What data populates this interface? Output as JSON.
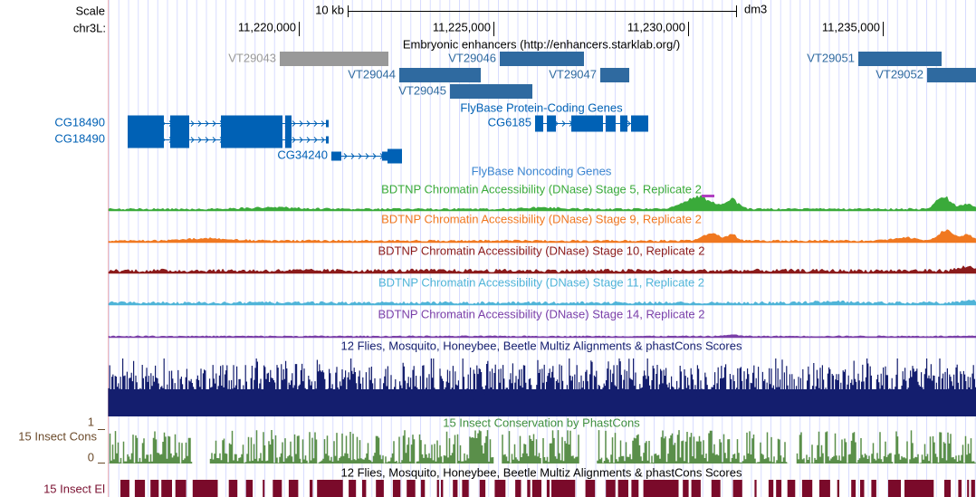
{
  "ruler": {
    "scale_label": "Scale",
    "scale_size": "10 kb",
    "assembly": "dm3",
    "chrom_label": "chr3L:",
    "positions": [
      "11,220,000",
      "11,225,000",
      "11,230,000",
      "11,235,000"
    ]
  },
  "enhancers": {
    "title": "Embryonic enhancers (http://enhancers.starklab.org/)",
    "items": [
      "VT29043",
      "VT29046",
      "VT29051",
      "VT29044",
      "VT29047",
      "VT29052",
      "VT29045"
    ]
  },
  "coding_genes": {
    "title": "FlyBase Protein-Coding Genes",
    "items": [
      "CG18490",
      "CG18490",
      "CG6185",
      "CG34240"
    ]
  },
  "noncoding_genes": {
    "title": "FlyBase Noncoding Genes"
  },
  "dnase_tracks": [
    "BDTNP Chromatin Accessibility (DNase) Stage 5, Replicate 2",
    "BDTNP Chromatin Accessibility (DNase) Stage 9, Replicate 2",
    "BDTNP Chromatin Accessibility (DNase) Stage 10, Replicate 2",
    "BDTNP Chromatin Accessibility (DNase) Stage 11, Replicate 2",
    "BDTNP Chromatin Accessibility (DNase) Stage 14, Replicate 2"
  ],
  "multiz": {
    "title": "12 Flies, Mosquito, Honeybee, Beetle Multiz Alignments & phastCons Scores"
  },
  "phastcons": {
    "side_label": "15 Insect Cons",
    "y_max": "1",
    "y_min": "0",
    "title": "15 Insect Conservation by PhastCons"
  },
  "elements": {
    "title": "12 Flies, Mosquito, Honeybee, Beetle Multiz Alignments & phastCons Scores",
    "side_label": "15 Insect El"
  }
}
